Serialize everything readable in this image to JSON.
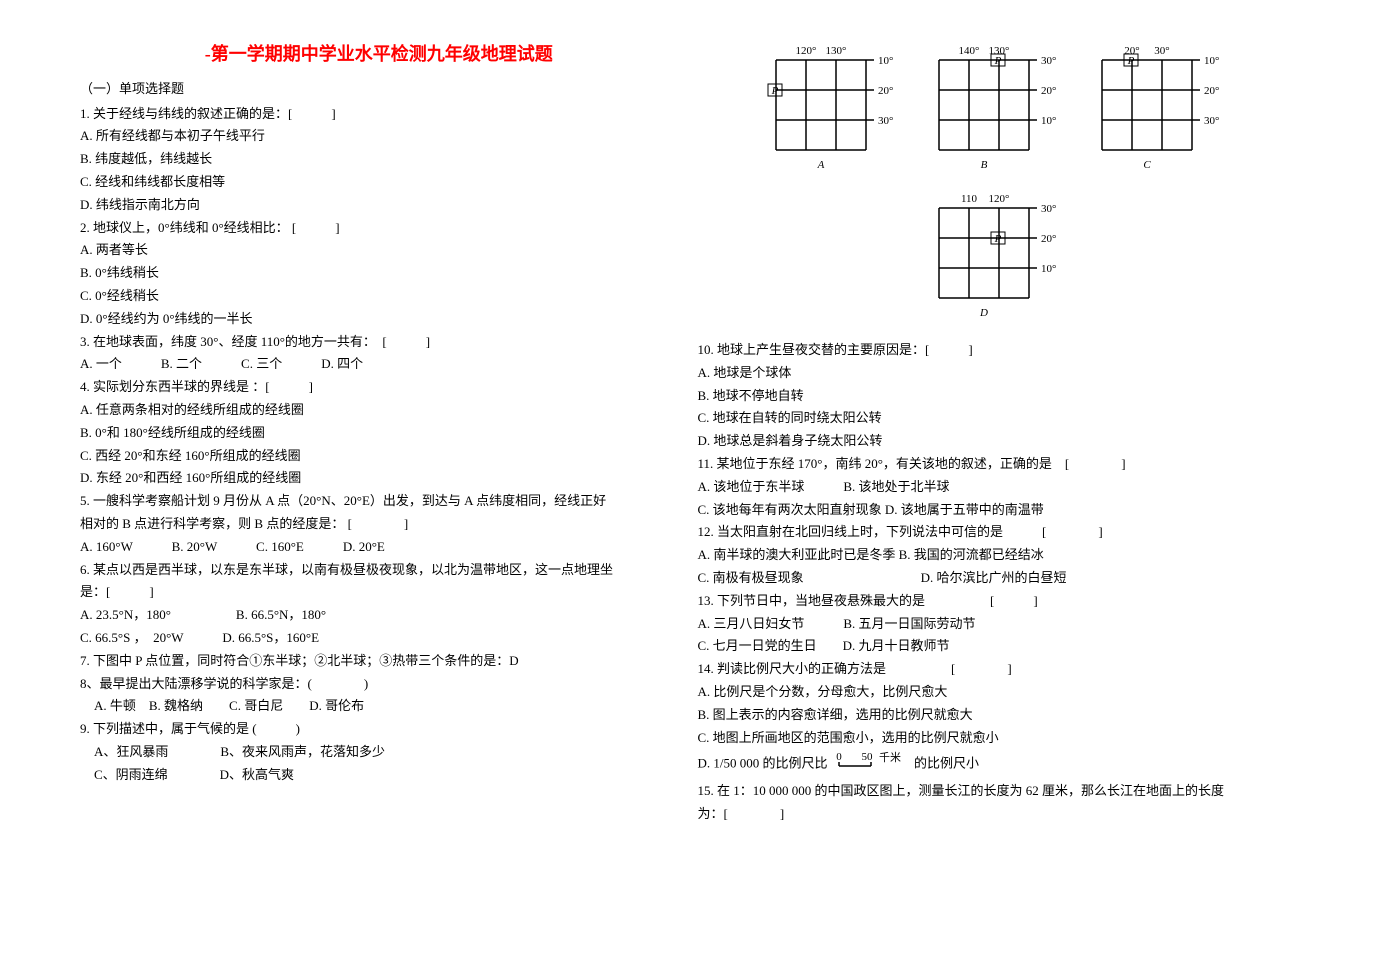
{
  "title": "-第一学期期中学业水平检测九年级地理试题",
  "section1_label": "（一）单项选择题",
  "left": {
    "q1": "1. 关于经线与纬线的叙述正确的是：[　　　]",
    "q1a": "A. 所有经线都与本初子午线平行",
    "q1b": "B. 纬度越低，纬线越长",
    "q1c": "C. 经线和纬线都长度相等",
    "q1d": "D. 纬线指示南北方向",
    "q2": "2. 地球仪上，0°纬线和 0°经线相比： [　　　]",
    "q2a": "A. 两者等长",
    "q2b": "B. 0°纬线稍长",
    "q2c": "C. 0°经线稍长",
    "q2d": "D. 0°经线约为 0°纬线的一半长",
    "q3": "3. 在地球表面，纬度 30°、经度 110°的地方一共有：　[　　　]",
    "q3opts": "A. 一个　　　B. 二个　　　C. 三个　　　D. 四个",
    "q4": "4. 实际划分东西半球的界线是 ：[　　　]",
    "q4a": "A. 任意两条相对的经线所组成的经线圈",
    "q4b": "B. 0°和 180°经线所组成的经线圈",
    "q4c": "C. 西经 20°和东经 160°所组成的经线圈",
    "q4d": "D. 东经 20°和西经 160°所组成的经线圈",
    "q5": "5. 一艘科学考察船计划 9 月份从 A 点（20°N、20°E）出发，到达与 A 点纬度相同，经线正好",
    "q5b": "相对的 B 点进行科学考察，则 B 点的经度是： [　　　　]",
    "q5opts": "A. 160°W　　　B. 20°W　　　C. 160°E　　　D. 20°E",
    "q6": "6. 某点以西是西半球，以东是东半球，以南有极昼极夜现象，以北为温带地区，这一点地理坐",
    "q6b": "是：[　　　]",
    "q6opts1": "A. 23.5°N，180°　　　　　B. 66.5°N，180°",
    "q6opts2": "C. 66.5°S ，　20°W　　　D. 66.5°S，160°E",
    "q7": "7. 下图中 P 点位置，同时符合①东半球；②北半球；③热带三个条件的是：D",
    "q8": "8、最早提出大陆漂移学说的科学家是：(　　　　)",
    "q8opts": "A. 牛顿　B. 魏格纳　　C. 哥白尼　　D. 哥伦布",
    "q9": "9. 下列描述中，属于气候的是 (　　　)",
    "q9opts1": "A、狂风暴雨　　　　B、夜来风雨声，花落知多少",
    "q9opts2": "C、阴雨连绵　　　　D、秋高气爽"
  },
  "right": {
    "q10": "10. 地球上产生昼夜交替的主要原因是：[　　　]",
    "q10a": "A. 地球是个球体",
    "q10b": "B. 地球不停地自转",
    "q10c": "C. 地球在自转的同时绕太阳公转",
    "q10d": "D. 地球总是斜着身子绕太阳公转",
    "q11": "11. 某地位于东经 170°，南纬 20°，有关该地的叙述，正确的是　[　　　　]",
    "q11ab": "A. 该地位于东半球　　　B. 该地处于北半球",
    "q11cd": "C. 该地每年有两次太阳直射现象 D. 该地属于五带中的南温带",
    "q12": "12. 当太阳直射在北回归线上时，下列说法中可信的是　　　[　　　　]",
    "q12ab": "A. 南半球的澳大利亚此时已是冬季 B. 我国的河流都已经结冰",
    "q12cd": "C. 南极有极昼现象　　　　　　　　　D. 哈尔滨比广州的白昼短",
    "q13": "13. 下列节日中，当地昼夜悬殊最大的是　　　　　[　　　]",
    "q13ab": "A. 三月八日妇女节　　　B. 五月一日国际劳动节",
    "q13cd": "C. 七月一日党的生日　　D. 九月十日教师节",
    "q14": "14. 判读比例尺大小的正确方法是　　　　　[　　　　]",
    "q14a": "A. 比例尺是个分数，分母愈大，比例尺愈大",
    "q14b": "B. 图上表示的内容愈详细，选用的比例尺就愈大",
    "q14c": "C. 地图上所画地区的范围愈小，选用的比例尺就愈小",
    "q14d_pre": "D. 1/50 000 的比例尺比",
    "q14d_post": "的比例尺小",
    "q15": "15. 在 1：10 000 000 的中国政区图上，测量长江的长度为 62 厘米，那么长江在地面上的长度",
    "q15b": "为：[　　　　]"
  },
  "diagrams": {
    "grid_color": "#000000",
    "text_color": "#000000",
    "bg_color": "#ffffff",
    "A": {
      "label": "A",
      "top_labels": [
        "120°",
        "130°"
      ],
      "right_labels": [
        "10°",
        "20°",
        "30°"
      ],
      "p_row": 1,
      "p_col": 0,
      "p_side": "left"
    },
    "B": {
      "label": "B",
      "top_labels": [
        "140°",
        "130°"
      ],
      "right_labels": [
        "30°",
        "20°",
        "10°"
      ],
      "p_row": 0,
      "p_col": 2,
      "p_side": "right"
    },
    "C": {
      "label": "C",
      "top_labels": [
        "20°",
        "30°"
      ],
      "right_labels": [
        "10°",
        "20°",
        "30°"
      ],
      "p_row": 0,
      "p_col": 1,
      "p_side": "right"
    },
    "D": {
      "label": "D",
      "top_labels": [
        "110",
        "120°"
      ],
      "right_labels": [
        "30°",
        "20°",
        "10°"
      ],
      "p_row": 1,
      "p_col": 2,
      "p_side": "right"
    }
  },
  "scale_bar": {
    "start": "0",
    "end": "50",
    "unit": "千米"
  }
}
